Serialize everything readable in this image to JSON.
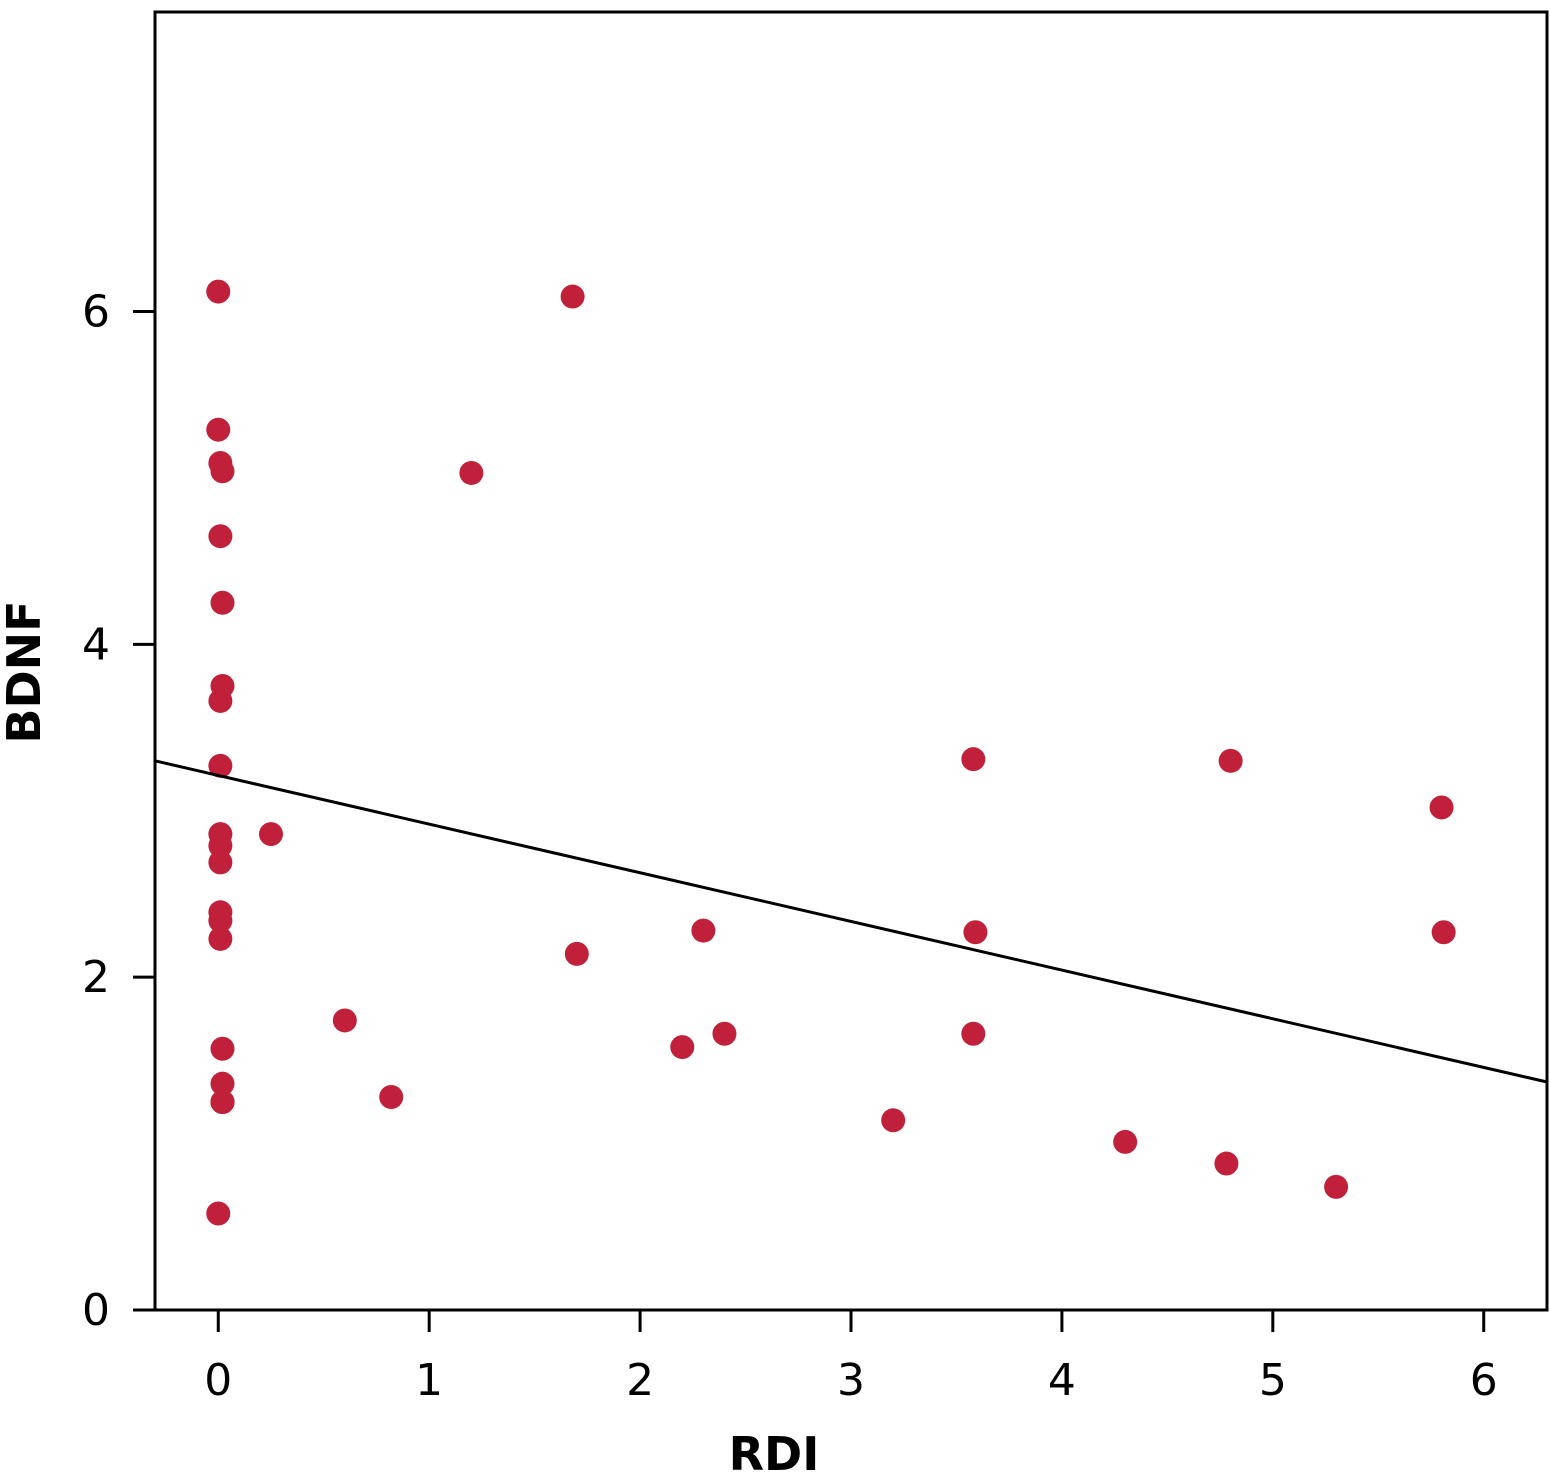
{
  "chart_data": {
    "type": "scatter",
    "title": "",
    "xlabel": "RDI",
    "ylabel": "BDNF",
    "xlim": [
      -0.3,
      6.3
    ],
    "ylim": [
      0,
      7.8
    ],
    "x_ticks": [
      0,
      1,
      2,
      3,
      4,
      5,
      6
    ],
    "y_ticks": [
      0,
      2,
      4,
      6
    ],
    "grid": false,
    "marker_color": "#c0203a",
    "fit_line_color": "#000000",
    "fit_line": {
      "x": [
        -0.3,
        6.3
      ],
      "y": [
        3.3,
        1.37
      ]
    },
    "series": [
      {
        "x": [
          0.0,
          0.0,
          0.01,
          0.02,
          0.01,
          0.02,
          0.02,
          0.01,
          0.01,
          0.01,
          0.01,
          0.01,
          0.01,
          0.01,
          0.01,
          0.02,
          0.02,
          0.02,
          0.02,
          0.02,
          0.0,
          0.25,
          0.6,
          0.82,
          1.2,
          1.68,
          1.7,
          2.2,
          2.3,
          2.4,
          3.2,
          3.58,
          3.59,
          3.58,
          4.3,
          4.78,
          4.8,
          5.3,
          5.8,
          5.81
        ],
        "y": [
          6.12,
          5.29,
          5.09,
          5.04,
          4.65,
          4.25,
          3.75,
          3.66,
          3.27,
          2.86,
          2.79,
          2.69,
          2.39,
          2.34,
          2.23,
          1.57,
          1.36,
          1.25,
          1.25,
          1.25,
          0.58,
          2.86,
          1.74,
          1.28,
          5.03,
          6.09,
          2.14,
          1.58,
          2.28,
          1.66,
          1.14,
          3.31,
          2.27,
          1.66,
          1.01,
          0.88,
          3.3,
          0.74,
          3.02,
          2.27
        ]
      }
    ]
  }
}
